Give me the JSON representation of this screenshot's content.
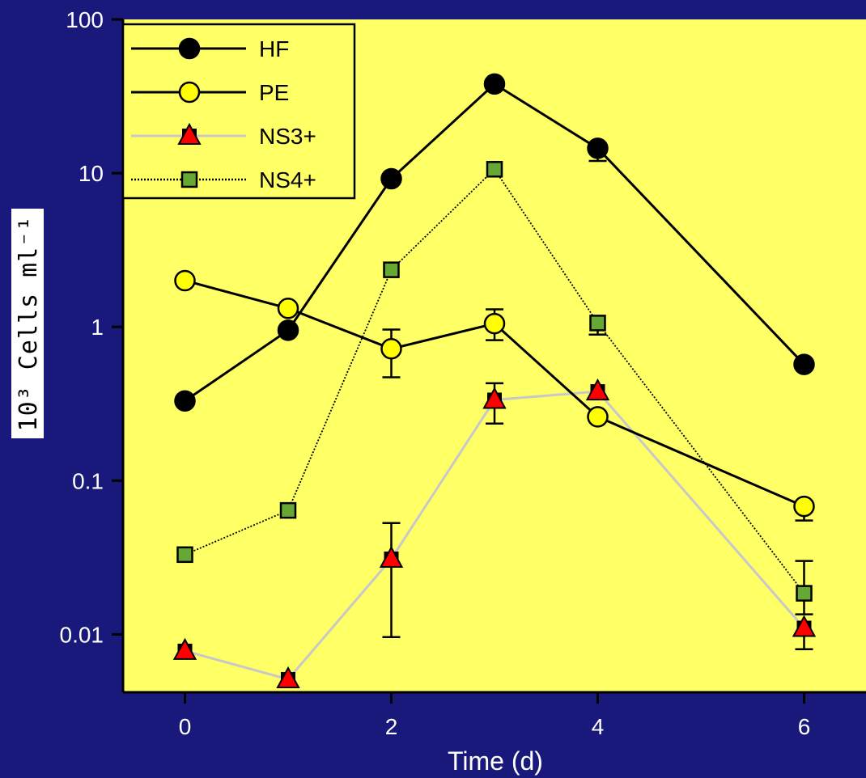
{
  "chart_data": {
    "type": "line",
    "xlabel": "Time (d)",
    "ylabel": "10³ Cells ml⁻¹",
    "yscale": "log",
    "xlim": [
      -0.6,
      6.6
    ],
    "ylim": [
      0.0042,
      100
    ],
    "xticks": [
      0,
      2,
      4,
      6
    ],
    "yticks": [
      {
        "value": 0.01,
        "label": "0.01"
      },
      {
        "value": 0.1,
        "label": "0.1"
      },
      {
        "value": 1,
        "label": "1"
      },
      {
        "value": 10,
        "label": "10"
      },
      {
        "value": 100,
        "label": "100"
      }
    ],
    "grid": false,
    "legend_position": "top-left",
    "plot_background": "#ffff66",
    "series": [
      {
        "name": "HF",
        "marker": "circle",
        "line": "solid",
        "line_color": "#000000",
        "marker_fill": "#000000",
        "x": [
          0,
          1,
          2,
          3,
          4,
          6
        ],
        "y": [
          0.33,
          0.95,
          9.2,
          38,
          14.5,
          0.57
        ],
        "err_low": [
          null,
          null,
          null,
          null,
          12,
          null
        ],
        "err_high": [
          null,
          null,
          null,
          null,
          null,
          null
        ]
      },
      {
        "name": "PE",
        "marker": "circle",
        "line": "solid",
        "line_color": "#000000",
        "marker_fill": "#ffff00",
        "x": [
          0,
          1,
          2,
          3,
          4,
          6
        ],
        "y": [
          2.0,
          1.32,
          0.72,
          1.05,
          0.26,
          0.068
        ],
        "err_low": [
          null,
          null,
          0.47,
          0.82,
          null,
          0.055
        ],
        "err_high": [
          null,
          null,
          0.96,
          1.3,
          null,
          null
        ]
      },
      {
        "name": "NS3+",
        "marker": "triangle",
        "line": "solid",
        "line_color": "#c8c8c8",
        "marker_fill": "#ff0000",
        "x": [
          0,
          1,
          2,
          3,
          4,
          6
        ],
        "y": [
          0.0078,
          0.0051,
          0.031,
          0.335,
          0.38,
          0.011
        ],
        "err_low": [
          null,
          null,
          0.0096,
          0.235,
          null,
          0.008
        ],
        "err_high": [
          null,
          null,
          0.053,
          0.43,
          null,
          null
        ]
      },
      {
        "name": "NS4+",
        "marker": "square",
        "line": "dotted",
        "line_color": "#000000",
        "marker_fill": "#66a833",
        "x": [
          0,
          1,
          2,
          3,
          4,
          6
        ],
        "y": [
          0.033,
          0.064,
          2.35,
          10.6,
          1.06,
          0.0185
        ],
        "err_low": [
          null,
          null,
          null,
          null,
          0.89,
          0.0135
        ],
        "err_high": [
          null,
          null,
          null,
          null,
          null,
          0.03
        ]
      }
    ]
  }
}
